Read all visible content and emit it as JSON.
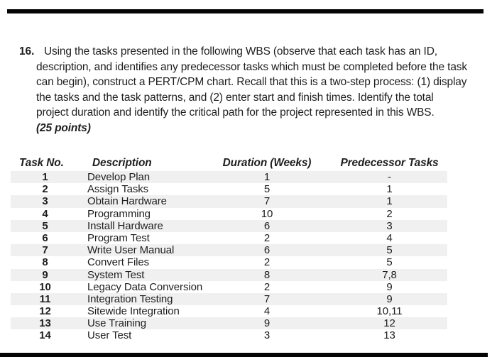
{
  "page": {
    "background_color": "#ffffff",
    "text_color": "#1e1e1e",
    "row_band_color": "#f0f0f0",
    "edge_bar_color": "#050505"
  },
  "question": {
    "number": "16.",
    "lines": [
      "Using the tasks presented in the following WBS (observe that each task has an ID,",
      "description, and identifies any predecessor tasks which must be completed before the task",
      "can begin), construct a PERT/CPM chart. Recall that this is a two-step process: (1) display",
      "the tasks and the task patterns, and (2) enter start and finish times. Identify the total",
      "project duration and identify the critical path for the project represented in this WBS."
    ],
    "points": "(25 points)"
  },
  "table": {
    "headers": [
      "Task No.",
      "Description",
      "Duration (Weeks)",
      "Predecessor Tasks"
    ],
    "rows": [
      {
        "no": "1",
        "desc": "Develop Plan",
        "dur": "1",
        "pred": "-"
      },
      {
        "no": "2",
        "desc": "Assign Tasks",
        "dur": "5",
        "pred": "1"
      },
      {
        "no": "3",
        "desc": "Obtain Hardware",
        "dur": "7",
        "pred": "1"
      },
      {
        "no": "4",
        "desc": "Programming",
        "dur": "10",
        "pred": "2"
      },
      {
        "no": "5",
        "desc": "Install Hardware",
        "dur": "6",
        "pred": "3"
      },
      {
        "no": "6",
        "desc": "Program Test",
        "dur": "2",
        "pred": "4"
      },
      {
        "no": "7",
        "desc": "Write User Manual",
        "dur": "6",
        "pred": "5"
      },
      {
        "no": "8",
        "desc": "Convert Files",
        "dur": "2",
        "pred": "5"
      },
      {
        "no": "9",
        "desc": "System Test",
        "dur": "8",
        "pred": "7,8"
      },
      {
        "no": "10",
        "desc": "Legacy Data Conversion",
        "dur": "2",
        "pred": "9"
      },
      {
        "no": "11",
        "desc": "Integration Testing",
        "dur": "7",
        "pred": "9"
      },
      {
        "no": "12",
        "desc": "Sitewide Integration",
        "dur": "4",
        "pred": "10,11"
      },
      {
        "no": "13",
        "desc": "Use Training",
        "dur": "9",
        "pred": "12"
      },
      {
        "no": "14",
        "desc": "User Test",
        "dur": "3",
        "pred": "13"
      }
    ]
  }
}
